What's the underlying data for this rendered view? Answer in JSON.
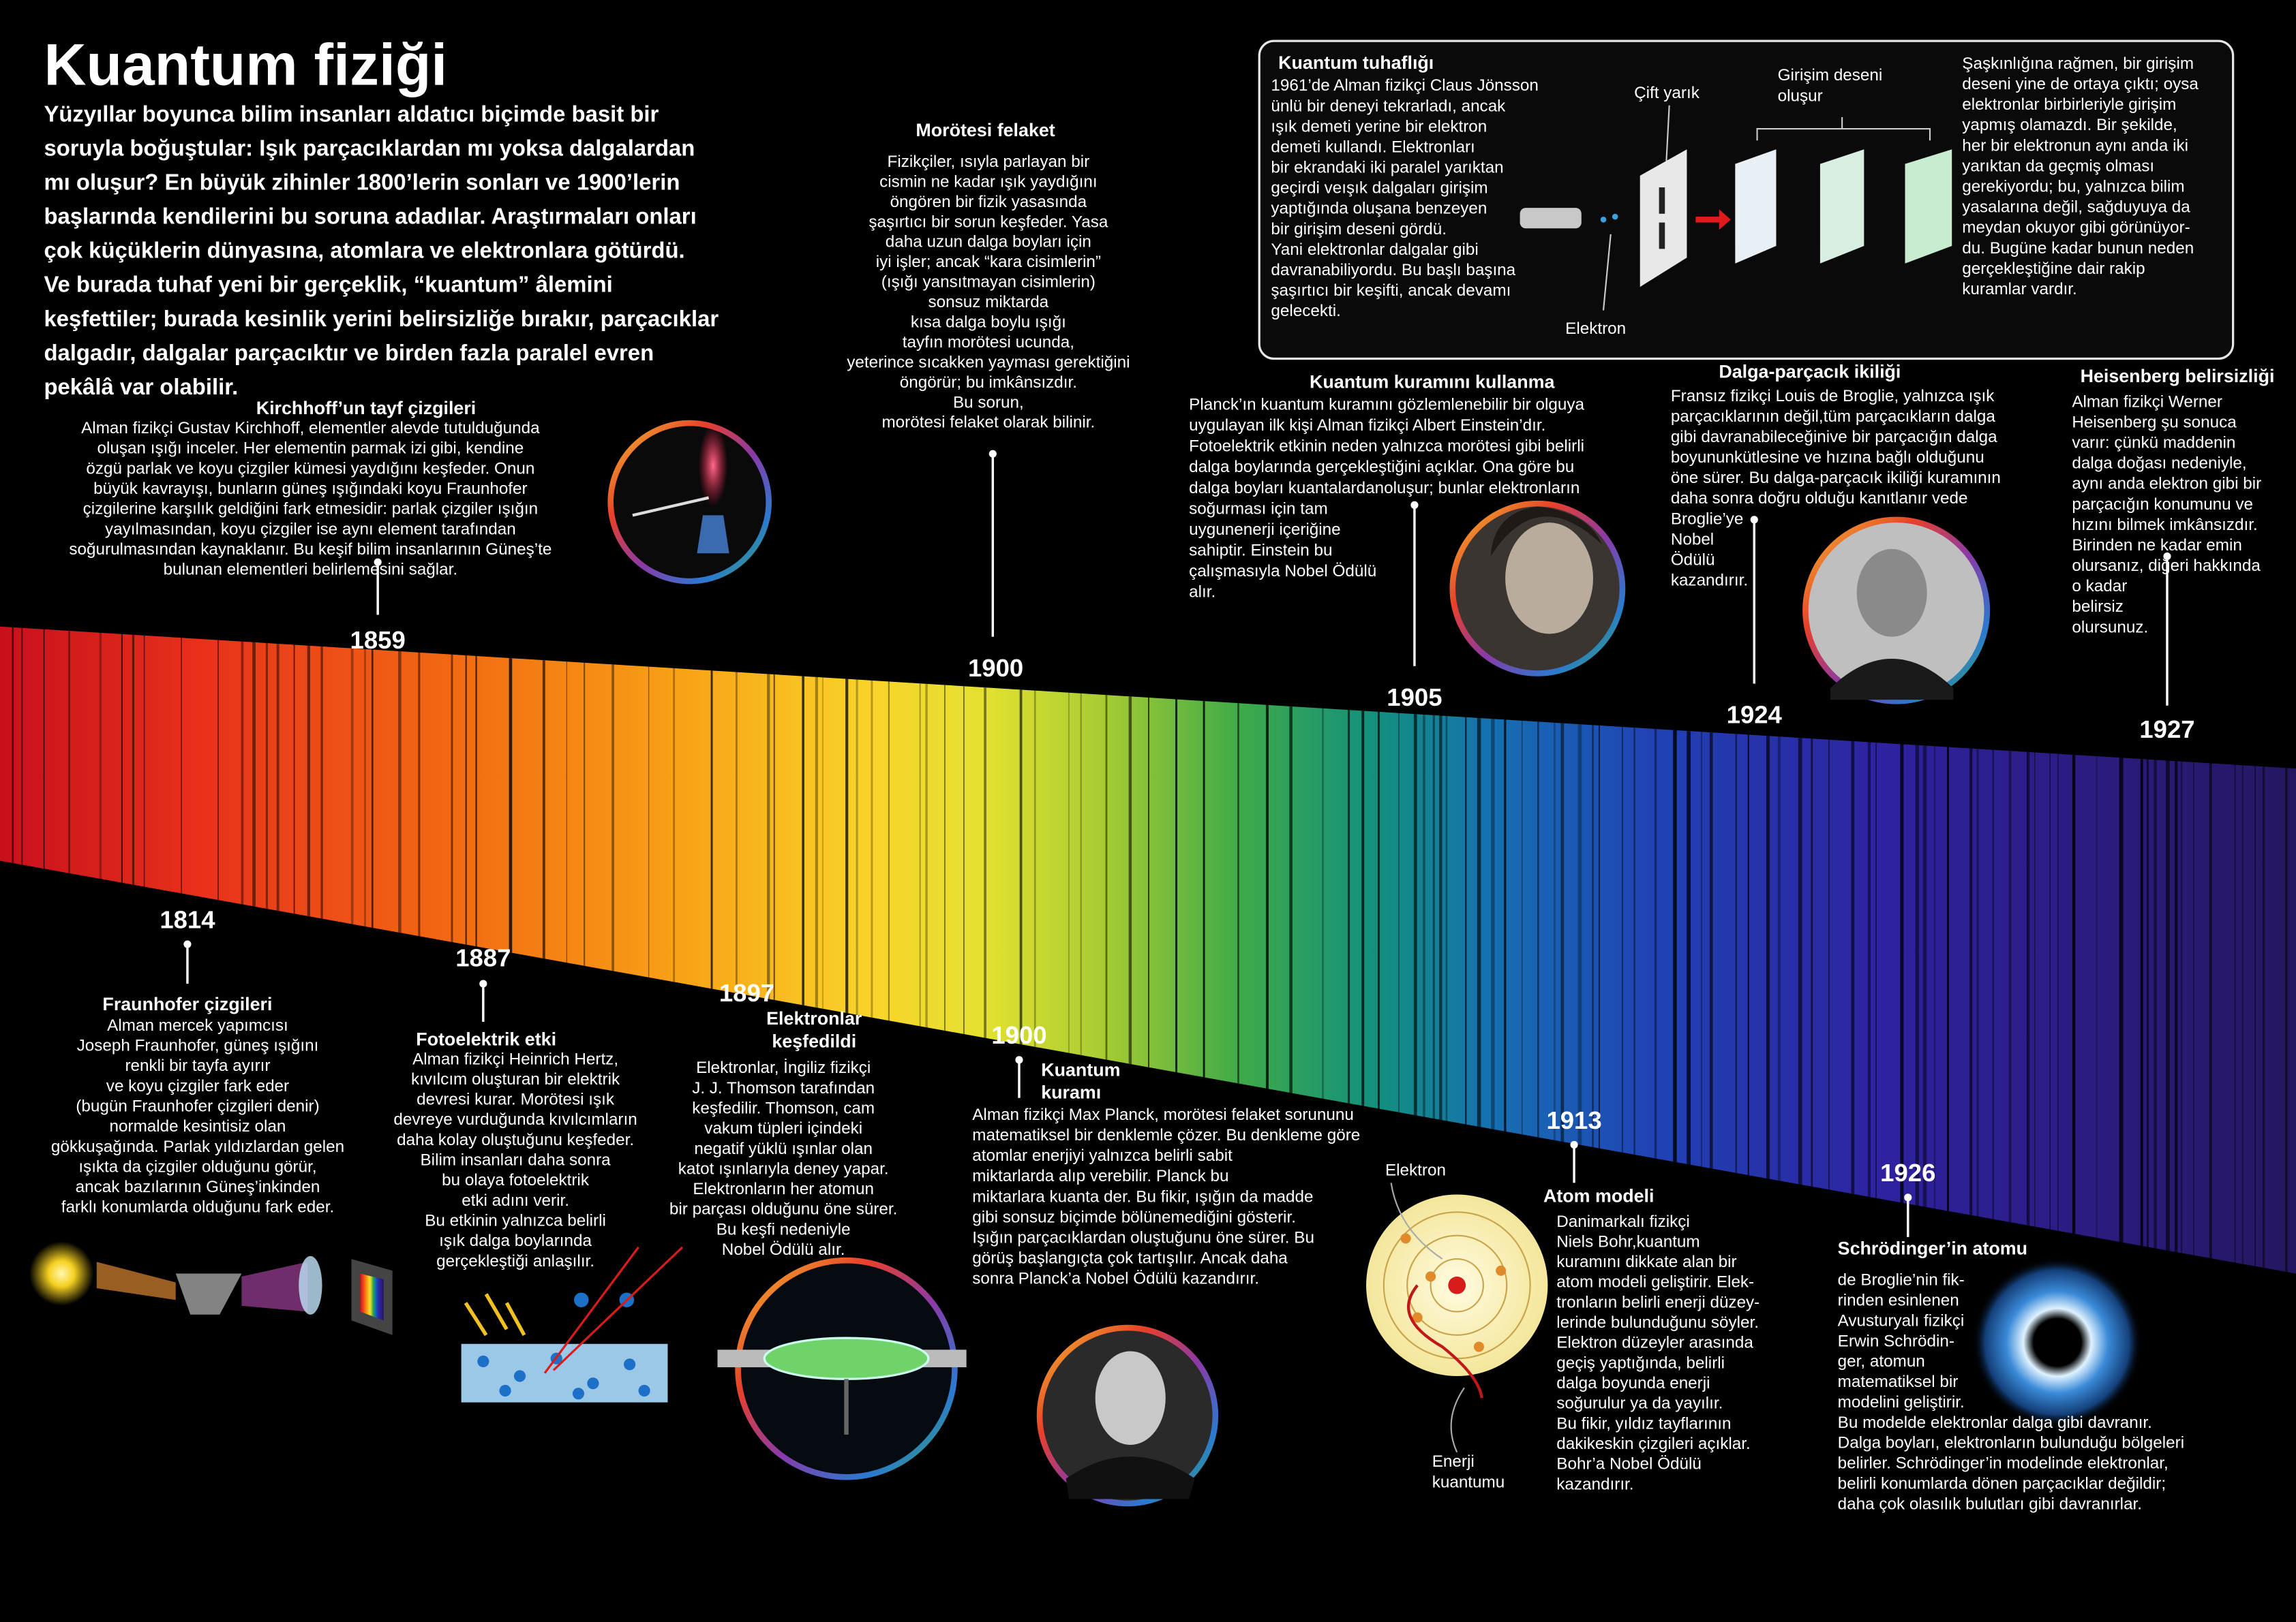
{
  "title": "Kuantum fiziği",
  "intro": [
    "Yüzyıllar boyunca bilim insanları aldatıcı biçimde basit bir",
    "soruyla boğuştular: Işık parçacıklardan mı yoksa dalgalardan",
    "mı oluşur? En büyük zihinler 1800’lerin sonları ve 1900’lerin",
    "başlarında kendilerini bu soruna adadılar. Araştırmaları onları",
    "çok küçüklerin dünyasına, atomlara ve elektronlara götürdü.",
    "Ve burada tuhaf yeni bir gerçeklik, “kuantum” âlemini",
    "keşfettiler; burada kesinlik yerini belirsizliğe bırakır, parçacıklar",
    "dalgadır, dalgalar parçacıktır ve birden fazla paralel evren",
    "pekâlâ var olabilir."
  ],
  "events": [
    {
      "year": "1859",
      "title": [
        "Kirchhoff’un tayf çizgileri"
      ],
      "body": [
        "Alman fizikçi Gustav Kirchhoff, elementler alevde tutulduğunda",
        "oluşan ışığı inceler. Her elementin parmak izi gibi, kendine",
        "özgü parlak ve koyu çizgiler kümesi yaydığını keşfeder. Onun",
        "büyük kavrayışı, bunların güneş ışığındaki koyu Fraunhofer",
        "çizgilerine karşılık geldiğini fark etmesidir: parlak çizgiler ışığın",
        "yayılmasından, koyu çizgiler ise aynı element tarafından",
        "soğurulmasından kaynaklanır. Bu keşif bilim insanlarının Güneş’te",
        "bulunan elementleri belirlemesini sağlar."
      ]
    },
    {
      "year": "1900",
      "title": [
        "Morötesi felaket"
      ],
      "body": [
        "Fizikçiler, ısıyla parlayan bir",
        "cismin ne kadar ışık yaydığını",
        "öngören bir fizik yasasında",
        "şaşırtıcı bir sorun keşfeder. Yasa",
        "daha uzun dalga boyları için",
        "iyi işler; ancak “kara cisimlerin”",
        "(ışığı yansıtmayan cisimlerin)",
        "sonsuz miktarda",
        "kısa dalga boylu ışığı",
        "tayfın morötesi ucunda,",
        "yeterince sıcakken yayması gerektiğini",
        "öngörür; bu imkânsızdır.",
        "Bu sorun,",
        "morötesi felaket olarak bilinir."
      ]
    },
    {
      "year": "1905",
      "title": [
        "Kuantum kuramını kullanma"
      ],
      "body": [
        "Planck’ın kuantum kuramını gözlemlenebilir bir olguya",
        "uygulayan ilk kişi Alman fizikçi Albert Einstein’dır.",
        "Fotoelektrik etkinin neden yalnızca morötesi gibi belirli",
        "dalga boylarında gerçekleştiğini açıklar. Ona göre bu",
        "dalga boyları kuantalardanoluşur; bunlar elektronların",
        "soğurması için tam",
        "uygunenerji içeriğine",
        "sahiptir. Einstein bu",
        "çalışmasıyla Nobel Ödülü",
        "alır."
      ]
    },
    {
      "year": "1924",
      "title": [
        "Dalga-parçacık ikiliği"
      ],
      "body": [
        "Fransız fizikçi Louis de Broglie, yalnızca ışık",
        "parçacıklarının değil,tüm parçacıkların dalga",
        "gibi davranabileceğinive bir parçacığın dalga",
        "boyununkütlesine ve hızına bağlı olduğunu",
        "öne sürer. Bu dalga-parçacık ikiliği kuramının",
        "daha sonra doğru olduğu kanıtlanır vede",
        "Broglie’ye",
        "Nobel",
        "Ödülü",
        "kazandırır."
      ]
    },
    {
      "year": "1927",
      "title": [
        "Heisenberg belirsizliği"
      ],
      "body": [
        "Alman fizikçi Werner",
        "Heisenberg şu sonuca",
        "varır: çünkü maddenin",
        "dalga doğası nedeniyle,",
        "aynı anda elektron gibi bir",
        "parçacığın konumunu ve",
        "hızını bilmek imkânsızdır.",
        "Birinden ne kadar emin",
        "olursanız, diğeri hakkında",
        "o kadar",
        "belirsiz",
        "olursunuz."
      ]
    },
    {
      "year": "1814",
      "title": [
        "Fraunhofer çizgileri"
      ],
      "body": [
        "Alman mercek yapımcısı",
        "Joseph Fraunhofer, güneş ışığını",
        "renkli bir tayfa ayırır",
        "ve koyu çizgiler fark eder",
        "(bugün Fraunhofer çizgileri denir)",
        "normalde kesintisiz olan",
        "gökkuşağında. Parlak yıldızlardan gelen",
        "ışıkta da çizgiler olduğunu görür,",
        "ancak bazılarının Güneş’inkinden",
        "farklı konumlarda olduğunu fark eder."
      ]
    },
    {
      "year": "1887",
      "title": [
        "Fotoelektrik etki"
      ],
      "body": [
        "Alman fizikçi Heinrich Hertz,",
        "kıvılcım oluşturan bir elektrik",
        "devresi kurar. Morötesi ışık",
        "devreye vurduğunda kıvılcımların",
        "daha kolay oluştuğunu keşfeder.",
        "Bilim insanları daha sonra",
        "bu olaya fotoelektrik",
        "etki adını verir.",
        "Bu etkinin yalnızca belirli",
        "ışık dalga boylarında",
        "gerçekleştiği anlaşılır."
      ]
    },
    {
      "year": "1897",
      "title": [
        "Elektronlar",
        "keşfedildi"
      ],
      "body": [
        "Elektronlar, İngiliz fizikçi",
        "J. J. Thomson tarafından",
        "keşfedilir. Thomson, cam",
        "vakum tüpleri içindeki",
        "negatif yüklü ışınlar olan",
        "katot ışınlarıyla deney yapar.",
        "Elektronların her atomun",
        "bir parçası olduğunu öne sürer.",
        "Bu keşfi nedeniyle",
        "Nobel Ödülü alır."
      ]
    },
    {
      "year": "1900",
      "title": [
        "Kuantum",
        "kuramı"
      ],
      "body": [
        "Alman fizikçi Max Planck, morötesi felaket sorununu",
        "matematiksel bir denklemle çözer. Bu denkleme göre",
        "atomlar enerjiyi yalnızca belirli sabit",
        "miktarlarda alıp verebilir. Planck bu",
        "miktarlara kuanta der. Bu fikir, ışığın da madde",
        "gibi sonsuz biçimde bölünemediğini gösterir.",
        "Işığın parçacıklardan oluştuğunu öne sürer. Bu",
        "görüş başlangıçta çok tartışılır. Ancak daha",
        "sonra Planck’a Nobel Ödülü kazandırır."
      ]
    },
    {
      "year": "1913",
      "title": [
        "Atom modeli"
      ],
      "body": [
        "Danimarkalı fizikçi",
        "Niels Bohr,kuantum",
        "kuramını dikkate alan bir",
        "atom modeli geliştirir. Elek-",
        "tronların belirli enerji düzey-",
        "lerinde bulunduğunu söyler.",
        "Elektron düzeyler arasında",
        "geçiş yaptığında, belirli",
        "dalga boyunda enerji",
        "soğurulur ya da yayılır.",
        "Bu fikir, yıldız tayflarının",
        "dakikeskin çizgileri açıklar.",
        "Bohr’a Nobel Ödülü",
        "kazandırır."
      ]
    },
    {
      "year": "1926",
      "title": [
        "Schrödinger’in atomu"
      ],
      "body": [
        "de Broglie’nin fik-",
        "rinden esinlenen",
        "Avusturyalı fizikçi",
        "Erwin Schrödin-",
        "ger, atomun",
        "matematiksel bir",
        "modelini geliştirir.",
        "Bu modelde elektronlar dalga gibi davranır.",
        "Dalga boyları, elektronların bulunduğu bölgeleri",
        "belirler. Schrödinger’in modelinde elektronlar,",
        "belirli konumlarda dönen parçacıklar değildir;",
        "daha çok olasılık bulutları gibi davranırlar."
      ]
    }
  ],
  "experiment": {
    "title": "Kuantum tuhaflığı",
    "body": [
      "1961’de Alman fizikçi Claus Jönsson",
      "ünlü bir deneyi tekrarladı, ancak",
      "ışık demeti yerine bir elektron",
      "demeti kullandı. Elektronları",
      "bir ekrandaki iki paralel yarıktan",
      "geçirdi veışık dalgaları girişim",
      "yaptığında oluşana benzeyen",
      "bir girişim deseni gördü.",
      "Yani elektronlar dalgalar gibi",
      "davranabiliyordu. Bu başlı başına",
      "şaşırtıcı bir keşifti, ancak devamı",
      "gelecekti."
    ],
    "body2": [
      "Şaşkınlığına rağmen, bir girişim",
      "deseni yine de ortaya çıktı; oysa",
      "elektronlar birbirleriyle girişim",
      "yapmış olamazdı. Bir şekilde,",
      "her bir elektronun aynı anda iki",
      "yarıktan da geçmiş olması",
      "gerekiyordu; bu, yalnızca bilim",
      "yasalarına değil, sağduyuya da",
      "meydan okuyor gibi görünüyor-",
      "du. Bugüne kadar bunun neden",
      "gerçekleştiğine dair rakip",
      "kuramlar vardır."
    ],
    "slit_label": "Çift yarık",
    "pattern_label": [
      "Girişim deseni",
      "oluşur"
    ],
    "electron_label": "Elektron"
  },
  "atom_labels": {
    "electron": "Elektron",
    "quantum": [
      "Enerji",
      "kuantumu"
    ]
  }
}
